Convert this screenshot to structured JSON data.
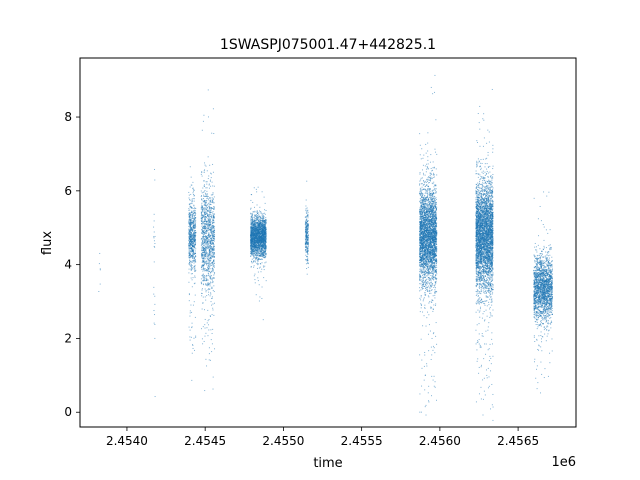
{
  "chart_data": {
    "type": "scatter",
    "title": "1SWASPJ075001.47+442825.1",
    "xlabel": "time",
    "ylabel": "flux",
    "x_offset_label": "1e6",
    "xlim": [
      2453700,
      2456870
    ],
    "ylim": [
      -0.4,
      9.6
    ],
    "x_ticks": [
      2454000,
      2454500,
      2455000,
      2455500,
      2456000,
      2456500
    ],
    "x_tick_labels": [
      "2.4540",
      "2.4545",
      "2.4550",
      "2.4555",
      "2.4560",
      "2.4565"
    ],
    "y_ticks": [
      0,
      2,
      4,
      6,
      8
    ],
    "y_tick_labels": [
      "0",
      "2",
      "4",
      "6",
      "8"
    ],
    "grid": false,
    "legend": "none",
    "marker_color": "#1f77b4",
    "clusters": [
      {
        "x_start": 2453820,
        "x_end": 2453830,
        "y_center": 4.1,
        "y_spread": 0.3,
        "n": 6
      },
      {
        "x_start": 2454170,
        "x_end": 2454180,
        "y_center": 5.2,
        "y_spread": 0.8,
        "n": 14
      },
      {
        "x_start": 2454170,
        "x_end": 2454180,
        "y_center": 2.8,
        "y_spread": 0.5,
        "n": 10
      },
      {
        "x_start": 2454395,
        "x_end": 2454440,
        "y_center": 4.8,
        "y_spread": 0.45,
        "n": 650
      },
      {
        "x_start": 2454395,
        "x_end": 2454440,
        "y_center": 2.2,
        "y_spread": 0.5,
        "n": 25
      },
      {
        "x_start": 2454475,
        "x_end": 2454560,
        "y_center": 4.7,
        "y_spread": 0.75,
        "n": 1100
      },
      {
        "x_start": 2454475,
        "x_end": 2454560,
        "y_center": 2.0,
        "y_spread": 0.5,
        "n": 30
      },
      {
        "x_start": 2454790,
        "x_end": 2454890,
        "y_center": 4.75,
        "y_spread": 0.28,
        "n": 2200
      },
      {
        "x_start": 2455140,
        "x_end": 2455160,
        "y_center": 4.8,
        "y_spread": 0.35,
        "n": 260
      },
      {
        "x_start": 2455870,
        "x_end": 2455980,
        "y_center": 4.8,
        "y_spread": 0.65,
        "n": 3300
      },
      {
        "x_start": 2455870,
        "x_end": 2455980,
        "y_center": 1.0,
        "y_spread": 0.7,
        "n": 40
      },
      {
        "x_start": 2456230,
        "x_end": 2456340,
        "y_center": 4.75,
        "y_spread": 0.75,
        "n": 3800
      },
      {
        "x_start": 2456230,
        "x_end": 2456340,
        "y_center": 1.2,
        "y_spread": 0.8,
        "n": 50
      },
      {
        "x_start": 2456600,
        "x_end": 2456720,
        "y_center": 3.35,
        "y_spread": 0.45,
        "n": 1900
      },
      {
        "x_start": 2456600,
        "x_end": 2456720,
        "y_center": 1.2,
        "y_spread": 0.5,
        "n": 15
      }
    ]
  }
}
